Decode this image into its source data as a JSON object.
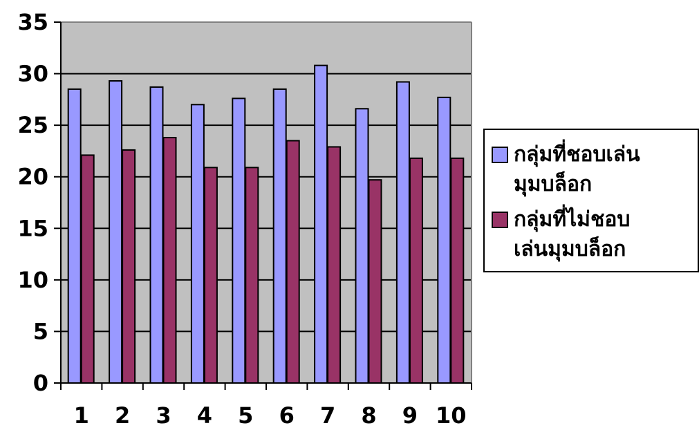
{
  "chart_data": {
    "type": "bar",
    "categories": [
      "1",
      "2",
      "3",
      "4",
      "5",
      "6",
      "7",
      "8",
      "9",
      "10"
    ],
    "series": [
      {
        "name": "กลุ่มที่ชอบเล่นมุมบล็อก",
        "color": "#9999ff",
        "values": [
          28.5,
          29.3,
          28.7,
          27.0,
          27.6,
          28.5,
          30.8,
          26.6,
          29.2,
          27.7
        ]
      },
      {
        "name": "กลุ่มที่ไม่ชอบเล่นมุมบล็อก",
        "color": "#993366",
        "values": [
          22.1,
          22.6,
          23.8,
          20.9,
          20.9,
          23.5,
          22.9,
          19.7,
          21.8,
          21.8
        ]
      }
    ],
    "ylim": [
      0,
      35
    ],
    "yticks": [
      "0",
      "5",
      "10",
      "15",
      "20",
      "25",
      "30",
      "35"
    ],
    "grid": true,
    "plot_background": "#c0c0c0",
    "legend": "right",
    "title": "",
    "xlabel": "",
    "ylabel": ""
  },
  "legend": {
    "items": [
      {
        "label_line1": "กลุ่มที่ชอบเล่น",
        "label_line2": "มุมบล็อก",
        "color": "#9999ff"
      },
      {
        "label_line1": "กลุ่มที่ไม่ชอบ",
        "label_line2": "เล่นมุมบล็อก",
        "color": "#993366"
      }
    ]
  }
}
